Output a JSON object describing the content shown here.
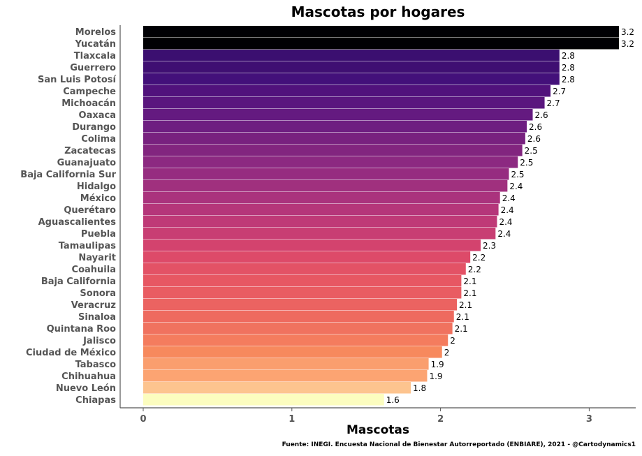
{
  "chart_data": {
    "type": "bar",
    "orientation": "horizontal",
    "title": "Mascotas por hogares",
    "xlabel": "Mascotas",
    "ylabel": "",
    "xlim": [
      0,
      3.2
    ],
    "xticks": [
      0,
      1,
      2,
      3
    ],
    "xtick_labels": [
      "0",
      "1",
      "2",
      "3"
    ],
    "grid": false,
    "legend": "none",
    "caption": "Fuente: INEGI. Encuesta Nacional de Bienestar Autorreportado (ENBIARE), 2021 - @Cartodynamics1",
    "categories": [
      "Morelos",
      "Yucatán",
      "Tlaxcala",
      "Guerrero",
      "San Luis Potosí",
      "Campeche",
      "Michoacán",
      "Oaxaca",
      "Durango",
      "Colima",
      "Zacatecas",
      "Guanajuato",
      "Baja California Sur",
      "Hidalgo",
      "México",
      "Querétaro",
      "Aguascalientes",
      "Puebla",
      "Tamaulipas",
      "Nayarit",
      "Coahuila",
      "Baja California",
      "Sonora",
      "Veracruz",
      "Sinaloa",
      "Quintana Roo",
      "Jalisco",
      "Ciudad de México",
      "Tabasco",
      "Chihuahua",
      "Nuevo León",
      "Chiapas"
    ],
    "values": [
      3.2,
      3.2,
      2.8,
      2.8,
      2.8,
      2.74,
      2.7,
      2.62,
      2.58,
      2.57,
      2.55,
      2.52,
      2.46,
      2.45,
      2.4,
      2.39,
      2.38,
      2.37,
      2.27,
      2.2,
      2.17,
      2.14,
      2.14,
      2.11,
      2.09,
      2.08,
      2.05,
      2.01,
      1.92,
      1.91,
      1.8,
      1.62
    ],
    "value_labels": [
      "3.2",
      "3.2",
      "2.8",
      "2.8",
      "2.8",
      "2.7",
      "2.7",
      "2.6",
      "2.6",
      "2.6",
      "2.5",
      "2.5",
      "2.5",
      "2.4",
      "2.4",
      "2.4",
      "2.4",
      "2.4",
      "2.3",
      "2.2",
      "2.2",
      "2.1",
      "2.1",
      "2.1",
      "2.1",
      "2.1",
      "2",
      "2",
      "1.9",
      "1.9",
      "1.8",
      "1.6"
    ],
    "colors": [
      "#000004",
      "#000004",
      "#3b0f70",
      "#3f0f72",
      "#43107a",
      "#51127c",
      "#5a167e",
      "#641a80",
      "#6e1e81",
      "#78217f",
      "#82257f",
      "#8c2981",
      "#962c80",
      "#a0307e",
      "#aa337d",
      "#b5367a",
      "#bf3a77",
      "#c83e73",
      "#d3436e",
      "#dd4a69",
      "#e35266",
      "#e75763",
      "#e95c62",
      "#eb6361",
      "#ee6a5f",
      "#f0725f",
      "#f47c5e",
      "#f7895d",
      "#fa9e6e",
      "#fca472",
      "#fdc48f",
      "#fcfdbf"
    ]
  }
}
